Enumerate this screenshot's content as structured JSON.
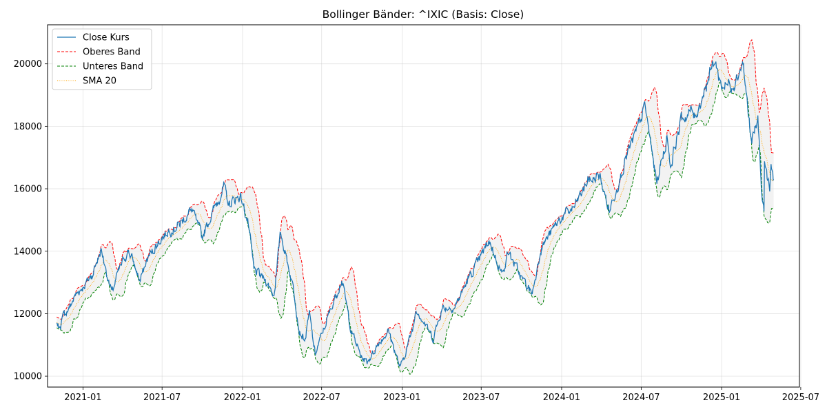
{
  "chart_data": {
    "type": "line",
    "title": "Bollinger Bänder: ^IXIC (Basis: Close)",
    "xlabel": "",
    "ylabel": "",
    "x_range": [
      "2020-10-12",
      "2025-06-28"
    ],
    "ylim": [
      9650,
      21250
    ],
    "x_ticks": [
      "2021-01",
      "2021-07",
      "2022-01",
      "2022-07",
      "2023-01",
      "2023-07",
      "2024-01",
      "2024-07",
      "2025-01",
      "2025-07"
    ],
    "y_ticks": [
      10000,
      12000,
      14000,
      16000,
      18000,
      20000
    ],
    "grid": true,
    "legend_position": "top-left",
    "band_fill_color": "#d3d3d3",
    "series": [
      {
        "name": "Close Kurs",
        "key": "close",
        "color": "#1f77b4",
        "style": "solid"
      },
      {
        "name": "Oberes Band",
        "key": "upper",
        "color": "#ff0000",
        "style": "dashed"
      },
      {
        "name": "Unteres Band",
        "key": "lower",
        "color": "#008000",
        "style": "dashed"
      },
      {
        "name": "SMA 20",
        "key": "sma",
        "color": "#ffa500",
        "style": "dotted"
      }
    ],
    "close_anchors": [
      [
        "2020-11-02",
        11700
      ],
      [
        "2020-11-09",
        11550
      ],
      [
        "2020-11-16",
        11900
      ],
      [
        "2020-12-01",
        12200
      ],
      [
        "2020-12-15",
        12600
      ],
      [
        "2021-01-04",
        12900
      ],
      [
        "2021-01-20",
        13200
      ],
      [
        "2021-02-12",
        14050
      ],
      [
        "2021-02-26",
        13200
      ],
      [
        "2021-03-08",
        12650
      ],
      [
        "2021-03-22",
        13300
      ],
      [
        "2021-04-15",
        14050
      ],
      [
        "2021-05-12",
        13050
      ],
      [
        "2021-05-28",
        13750
      ],
      [
        "2021-06-25",
        14350
      ],
      [
        "2021-07-15",
        14650
      ],
      [
        "2021-08-10",
        14850
      ],
      [
        "2021-09-07",
        15350
      ],
      [
        "2021-09-30",
        14450
      ],
      [
        "2021-10-20",
        15100
      ],
      [
        "2021-11-19",
        16050
      ],
      [
        "2021-12-01",
        15500
      ],
      [
        "2021-12-27",
        15800
      ],
      [
        "2022-01-14",
        14900
      ],
      [
        "2022-01-27",
        13400
      ],
      [
        "2022-02-24",
        13050
      ],
      [
        "2022-03-14",
        12600
      ],
      [
        "2022-03-29",
        14600
      ],
      [
        "2022-04-28",
        12800
      ],
      [
        "2022-05-11",
        11450
      ],
      [
        "2022-05-24",
        11150
      ],
      [
        "2022-06-03",
        12000
      ],
      [
        "2022-06-16",
        10700
      ],
      [
        "2022-07-08",
        11600
      ],
      [
        "2022-08-16",
        13100
      ],
      [
        "2022-09-06",
        11500
      ],
      [
        "2022-09-30",
        10600
      ],
      [
        "2022-10-13",
        10450
      ],
      [
        "2022-11-10",
        11100
      ],
      [
        "2022-12-01",
        11450
      ],
      [
        "2022-12-28",
        10250
      ],
      [
        "2023-01-27",
        11600
      ],
      [
        "2023-02-02",
        12200
      ],
      [
        "2023-03-13",
        11200
      ],
      [
        "2023-04-03",
        12200
      ],
      [
        "2023-05-01",
        12200
      ],
      [
        "2023-06-01",
        13100
      ],
      [
        "2023-06-30",
        13800
      ],
      [
        "2023-07-19",
        14350
      ],
      [
        "2023-08-18",
        13250
      ],
      [
        "2023-08-31",
        14000
      ],
      [
        "2023-10-03",
        13100
      ],
      [
        "2023-10-26",
        12650
      ],
      [
        "2023-11-14",
        14100
      ],
      [
        "2023-12-29",
        15050
      ],
      [
        "2024-01-30",
        15400
      ],
      [
        "2024-03-01",
        16250
      ],
      [
        "2024-03-28",
        16400
      ],
      [
        "2024-04-19",
        15300
      ],
      [
        "2024-05-28",
        17000
      ],
      [
        "2024-06-20",
        17800
      ],
      [
        "2024-07-10",
        18650
      ],
      [
        "2024-08-05",
        16200
      ],
      [
        "2024-08-30",
        17700
      ],
      [
        "2024-09-06",
        16700
      ],
      [
        "2024-09-30",
        18200
      ],
      [
        "2024-10-25",
        18500
      ],
      [
        "2024-11-01",
        18250
      ],
      [
        "2024-12-16",
        20150
      ],
      [
        "2024-12-31",
        19300
      ],
      [
        "2025-01-27",
        19350
      ],
      [
        "2025-02-19",
        20050
      ],
      [
        "2025-03-10",
        17450
      ],
      [
        "2025-03-25",
        18200
      ],
      [
        "2025-04-04",
        15600
      ],
      [
        "2025-04-08",
        15300
      ],
      [
        "2025-04-09",
        16900
      ],
      [
        "2025-04-21",
        15900
      ],
      [
        "2025-04-24",
        16700
      ],
      [
        "2025-04-30",
        16300
      ]
    ]
  }
}
